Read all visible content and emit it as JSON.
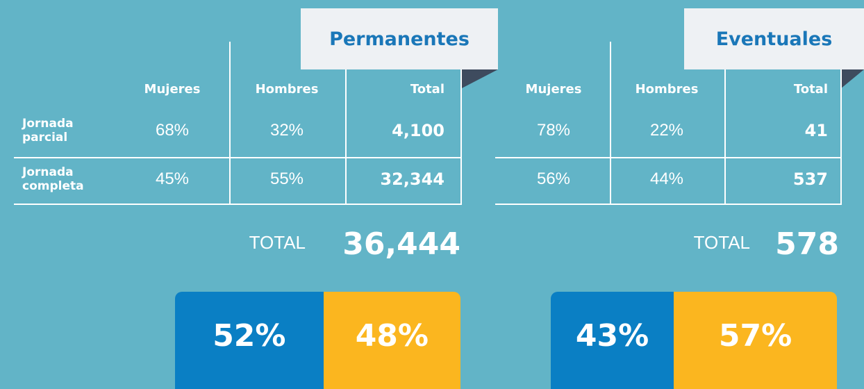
{
  "panels": [
    {
      "title": "Permanentes",
      "columns": [
        "Mujeres",
        "Hombres",
        "Total"
      ],
      "rows": [
        {
          "label": "Jornada parcial",
          "cells": [
            "68%",
            "32%",
            "4,100"
          ]
        },
        {
          "label": "Jornada completa",
          "cells": [
            "45%",
            "55%",
            "32,344"
          ]
        }
      ],
      "total_label": "TOTAL",
      "total": "36,444",
      "split": [
        {
          "value": 52,
          "label": "52%"
        },
        {
          "value": 48,
          "label": "48%"
        }
      ]
    },
    {
      "title": "Eventuales",
      "columns": [
        "Mujeres",
        "Hombres",
        "Total"
      ],
      "rows": [
        {
          "cells": [
            "78%",
            "22%",
            "41"
          ]
        },
        {
          "cells": [
            "56%",
            "44%",
            "537"
          ]
        }
      ],
      "total_label": "TOTAL",
      "total": "578",
      "split": [
        {
          "value": 43,
          "label": "43%"
        },
        {
          "value": 57,
          "label": "57%"
        }
      ]
    }
  ]
}
